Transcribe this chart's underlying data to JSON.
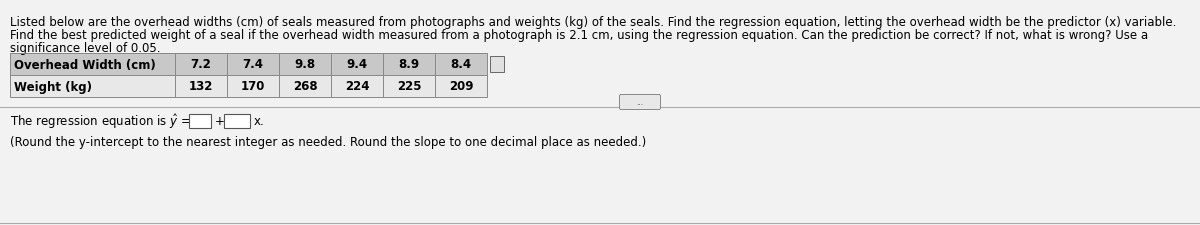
{
  "title_lines": [
    "Listed below are the overhead widths (cm) of seals measured from photographs and weights (kg) of the seals. Find the regression equation, letting the overhead width be the predictor (x) variable.",
    "Find the best predicted weight of a seal if the overhead width measured from a photograph is 2.1 cm, using the regression equation. Can the prediction be correct? If not, what is wrong? Use a",
    "significance level of 0.05."
  ],
  "table_header": [
    "Overhead Width (cm)",
    "7.2",
    "7.4",
    "9.8",
    "9.4",
    "8.9",
    "8.4"
  ],
  "table_row2": [
    "Weight (kg)",
    "132",
    "170",
    "268",
    "224",
    "225",
    "209"
  ],
  "regression_prefix": "The regression equation is ",
  "regression_suffix": "x.",
  "regression_note": "(Round the y-intercept to the nearest integer as needed. Round the slope to one decimal place as needed.)",
  "bg_color": "#f2f2f2",
  "header_row_bg": "#c8c8c8",
  "data_row_bg": "#e8e8e8",
  "text_color": "#000000",
  "font_size_body": 8.5,
  "font_size_table": 8.5
}
